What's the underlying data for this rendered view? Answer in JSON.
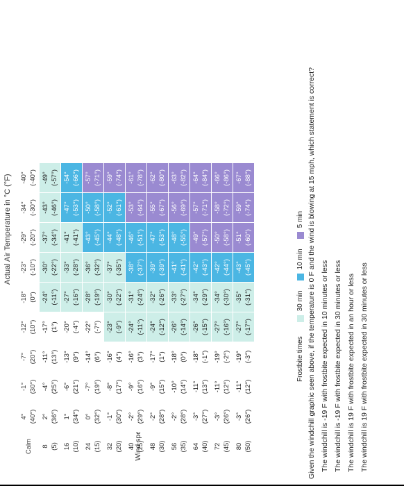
{
  "title": "Actual Air Temperature in °C (°F)",
  "wind_label": "Wind speed, kmph (mph)",
  "calm_label": "Calm",
  "header_temps": [
    [
      "4°",
      "(40°)"
    ],
    [
      "-1°",
      "(30°)"
    ],
    [
      "-7°",
      "(20°)"
    ],
    [
      "-12°",
      "(10°)"
    ],
    [
      "-18°",
      "(0°)"
    ],
    [
      "-23°",
      "(-10°)"
    ],
    [
      "-29°",
      "(-20°)"
    ],
    [
      "-34°",
      "(-30°)"
    ],
    [
      "-40°",
      "(-40°)"
    ]
  ],
  "rows": [
    {
      "wind": [
        "8",
        "(5)"
      ],
      "cells": [
        [
          "2°",
          "(36°)"
        ],
        [
          "-4°",
          "(25°)"
        ],
        [
          "-11°",
          "(13°)"
        ],
        [
          "-17°",
          "(1°)"
        ],
        [
          "-24°",
          "(-11°)"
        ],
        [
          "-30°",
          "(-22°)"
        ],
        [
          "-37°",
          "(-34°)"
        ],
        [
          "-43°",
          "(-46°)"
        ],
        [
          "-49°",
          "(-57°)"
        ]
      ],
      "zones": [
        0,
        0,
        0,
        0,
        1,
        1,
        1,
        1,
        1
      ]
    },
    {
      "wind": [
        "16",
        "(10)"
      ],
      "cells": [
        [
          "1°",
          "(34°)"
        ],
        [
          "-6°",
          "(21°)"
        ],
        [
          "-13°",
          "(9°)"
        ],
        [
          "-20°",
          "(-4°)"
        ],
        [
          "-27°",
          "(-16°)"
        ],
        [
          "-33°",
          "(-28°)"
        ],
        [
          "-41°",
          "(-41°)"
        ],
        [
          "-47°",
          "(-53°)"
        ],
        [
          "-54°",
          "(-66°)"
        ]
      ],
      "zones": [
        0,
        0,
        0,
        0,
        1,
        1,
        1,
        2,
        2
      ]
    },
    {
      "wind": [
        "24",
        "(15)"
      ],
      "cells": [
        [
          "0°",
          "(32°)"
        ],
        [
          "-7°",
          "(19°)"
        ],
        [
          "-14°",
          "(6°)"
        ],
        [
          "-22°",
          "(-7°)"
        ],
        [
          "-28°",
          "(-19°)"
        ],
        [
          "-36°",
          "(-32°)"
        ],
        [
          "-43°",
          "(-45°)"
        ],
        [
          "-50°",
          "(-58°)"
        ],
        [
          "-57°",
          "(-71°)"
        ]
      ],
      "zones": [
        0,
        0,
        0,
        0,
        1,
        1,
        2,
        2,
        3
      ]
    },
    {
      "wind": [
        "32",
        "(20)"
      ],
      "cells": [
        [
          "-1°",
          "(30°)"
        ],
        [
          "-8°",
          "(17°)"
        ],
        [
          "-16°",
          "(4°)"
        ],
        [
          "-23°",
          "(-9°)"
        ],
        [
          "-30°",
          "(-22°)"
        ],
        [
          "-37°",
          "(-35°)"
        ],
        [
          "-44°",
          "(-48°)"
        ],
        [
          "-52°",
          "(-61°)"
        ],
        [
          "-59°",
          "(-74°)"
        ]
      ],
      "zones": [
        0,
        0,
        0,
        1,
        1,
        1,
        2,
        2,
        3
      ]
    },
    {
      "wind": [
        "40",
        "(25)"
      ],
      "cells": [
        [
          "-2°",
          "(29°)"
        ],
        [
          "-9°",
          "(16°)"
        ],
        [
          "-16°",
          "(3°)"
        ],
        [
          "-24°",
          "(-11°)"
        ],
        [
          "-31°",
          "(-24°)"
        ],
        [
          "-38°",
          "(-37°)"
        ],
        [
          "-46°",
          "(-51°)"
        ],
        [
          "-53°",
          "(-64°)"
        ],
        [
          "-61°",
          "(-78°)"
        ]
      ],
      "zones": [
        0,
        0,
        0,
        1,
        1,
        2,
        2,
        3,
        3
      ]
    },
    {
      "wind": [
        "48",
        "(30)"
      ],
      "cells": [
        [
          "-2°",
          "(28°)"
        ],
        [
          "-9°",
          "(15°)"
        ],
        [
          "-17°",
          "(1°)"
        ],
        [
          "-24°",
          "(-12°)"
        ],
        [
          "-32°",
          "(-26°)"
        ],
        [
          "-39°",
          "(-39°)"
        ],
        [
          "-47°",
          "(-53°)"
        ],
        [
          "-55°",
          "(-67°)"
        ],
        [
          "-62°",
          "(-80°)"
        ]
      ],
      "zones": [
        0,
        0,
        0,
        1,
        1,
        2,
        2,
        3,
        3
      ]
    },
    {
      "wind": [
        "56",
        "(35)"
      ],
      "cells": [
        [
          "-2°",
          "(28°)"
        ],
        [
          "-10°",
          "(14°)"
        ],
        [
          "-18°",
          "(0°)"
        ],
        [
          "-26°",
          "(-14°)"
        ],
        [
          "-33°",
          "(-27°)"
        ],
        [
          "-41°",
          "(-41°)"
        ],
        [
          "-48°",
          "(-55°)"
        ],
        [
          "-56°",
          "(-69°)"
        ],
        [
          "-63°",
          "(-82°)"
        ]
      ],
      "zones": [
        0,
        0,
        0,
        1,
        1,
        2,
        2,
        3,
        3
      ]
    },
    {
      "wind": [
        "64",
        "(40)"
      ],
      "cells": [
        [
          "-3°",
          "(27°)"
        ],
        [
          "-11°",
          "(13°)"
        ],
        [
          "-18°",
          "(-1°)"
        ],
        [
          "-26°",
          "(-15°)"
        ],
        [
          "-34°",
          "(-29°)"
        ],
        [
          "-42°",
          "(-43°)"
        ],
        [
          "-49°",
          "(-57°)"
        ],
        [
          "-57°",
          "(-71°)"
        ],
        [
          "-64°",
          "(-84°)"
        ]
      ],
      "zones": [
        0,
        0,
        0,
        1,
        1,
        2,
        3,
        3,
        3
      ]
    },
    {
      "wind": [
        "72",
        "(45)"
      ],
      "cells": [
        [
          "-3°",
          "(26°)"
        ],
        [
          "-11°",
          "(12°)"
        ],
        [
          "-19°",
          "(-2°)"
        ],
        [
          "-27°",
          "(-16°)"
        ],
        [
          "-34°",
          "(-30°)"
        ],
        [
          "-42°",
          "(-44°)"
        ],
        [
          "-50°",
          "(-58°)"
        ],
        [
          "-58°",
          "(-72°)"
        ],
        [
          "-66°",
          "(-86°)"
        ]
      ],
      "zones": [
        0,
        0,
        0,
        1,
        1,
        2,
        3,
        3,
        3
      ]
    },
    {
      "wind": [
        "80",
        "(50)"
      ],
      "cells": [
        [
          "-3°",
          "(26°)"
        ],
        [
          "-11°",
          "(12°)"
        ],
        [
          "-19°",
          "(-3°)"
        ],
        [
          "-27°",
          "(-17°)"
        ],
        [
          "-35°",
          "(-31°)"
        ],
        [
          "-43°",
          "(-45°)"
        ],
        [
          "-51°",
          "(-60°)"
        ],
        [
          "-59°",
          "(-74°)"
        ],
        [
          "-67°",
          "(-88°)"
        ]
      ],
      "zones": [
        0,
        0,
        0,
        1,
        1,
        2,
        3,
        3,
        3
      ]
    }
  ],
  "legend": {
    "label": "Frostbite times",
    "items": [
      {
        "label": "30 min",
        "color": "#cdeee8"
      },
      {
        "label": "10 min",
        "color": "#4bb6e3"
      },
      {
        "label": "5 min",
        "color": "#9a8ad1"
      }
    ]
  },
  "question": "Given the windchill graphic seen above, if the temperature is 0 F and the wind is blowing at 15 mph, which statement is correct?",
  "options": [
    "The windchill is -19 F with frostbite expected in 10 minutes or less",
    "The windchill is -19 F with frostbite expected in 30 minutes or less",
    "The windchill is 19 F with frostbite expected in an hour or less",
    "The windchill is 19 F with frostbite expected in 30 minutes or less"
  ]
}
